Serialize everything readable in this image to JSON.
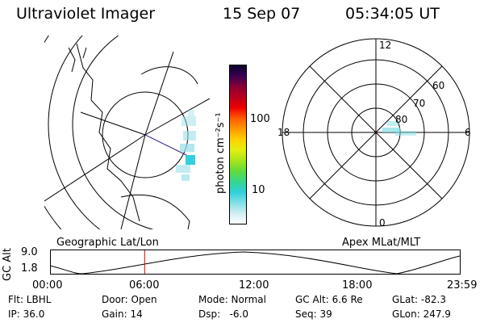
{
  "header": {
    "title": "Ultraviolet Imager",
    "date": "15 Sep 07",
    "time": "05:34:05 UT"
  },
  "map_labels": {
    "left": "Geographic Lat/Lon",
    "right": "Apex MLat/MLT"
  },
  "colorbar": {
    "unit_label": "photon cm⁻²s⁻¹",
    "tick_100": "100",
    "tick_10": "10",
    "colors": [
      "#ffffff",
      "#cfeef2",
      "#7fe0e6",
      "#2fd0dc",
      "#35d68a",
      "#62dc3a",
      "#a8e61a",
      "#e6ee10",
      "#ffd000",
      "#ff9600",
      "#ff5a00",
      "#f00000",
      "#b8001e",
      "#8a0036",
      "#3a0050",
      "#0a0030"
    ]
  },
  "polar": {
    "mlt_top": "12",
    "mlt_bottom": "0",
    "mlt_left": "18",
    "mlt_right": "6",
    "lat_60": "60",
    "lat_70": "70",
    "lat_80": "80"
  },
  "alt_plot": {
    "axis_label": "GC Alt",
    "y_high": "9.0",
    "y_low": "1.8",
    "x_ticks": [
      "00:00",
      "06:00",
      "12:00",
      "18:00",
      "23:59"
    ],
    "marker_fraction": 0.231
  },
  "info": {
    "filter": "Flt: LBHL",
    "ip": "IP: 36.0",
    "door": "Door: Open",
    "gain": "Gain: 14",
    "mode": "Mode: Normal",
    "dsp": "Dsp:   -6.0",
    "gc_alt": "GC Alt: 6.6 Re",
    "seq": "Seq: 39",
    "glat": "GLat: -82.3",
    "glon": "GLon: 247.9"
  }
}
